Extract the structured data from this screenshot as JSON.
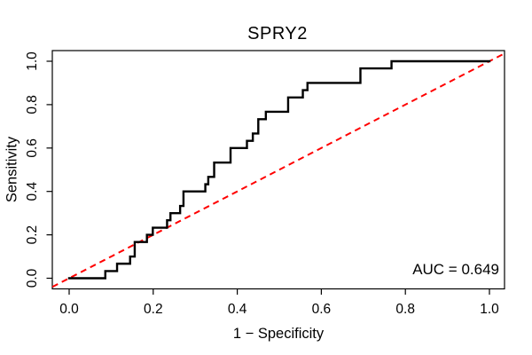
{
  "chart_data": {
    "type": "line",
    "subtype": "roc_step_curve",
    "title": "SPRY2",
    "xlabel": "1 − Specificity",
    "ylabel": "Sensitivity",
    "xlim": [
      0,
      1
    ],
    "ylim": [
      0,
      1
    ],
    "grid": false,
    "x_ticks": [
      0,
      0.2,
      0.4,
      0.6,
      0.8,
      1.0
    ],
    "x_tick_labels": [
      "0.0",
      "0.2",
      "0.4",
      "0.6",
      "0.8",
      "1.0"
    ],
    "y_ticks": [
      0,
      0.2,
      0.4,
      0.6,
      0.8,
      1.0
    ],
    "y_tick_labels": [
      "0.0",
      "0.2",
      "0.4",
      "0.6",
      "0.8",
      "1.0"
    ],
    "auc": 0.649,
    "annotation": "AUC = 0.649",
    "annotation_position": "bottom-right",
    "colors": {
      "curve": "#000000",
      "reference_line": "#FF0000",
      "axis": "#000000",
      "background": "#FFFFFF",
      "text": "#000000"
    },
    "series": [
      {
        "name": "ROC curve",
        "style": "solid-step",
        "color": "#000000",
        "points": [
          [
            0.0,
            0.0
          ],
          [
            0.086,
            0.033
          ],
          [
            0.114,
            0.067
          ],
          [
            0.145,
            0.1
          ],
          [
            0.156,
            0.167
          ],
          [
            0.185,
            0.2
          ],
          [
            0.199,
            0.233
          ],
          [
            0.233,
            0.267
          ],
          [
            0.241,
            0.3
          ],
          [
            0.264,
            0.333
          ],
          [
            0.272,
            0.4
          ],
          [
            0.324,
            0.433
          ],
          [
            0.331,
            0.467
          ],
          [
            0.345,
            0.533
          ],
          [
            0.384,
            0.6
          ],
          [
            0.423,
            0.633
          ],
          [
            0.437,
            0.667
          ],
          [
            0.45,
            0.733
          ],
          [
            0.468,
            0.767
          ],
          [
            0.521,
            0.833
          ],
          [
            0.556,
            0.867
          ],
          [
            0.567,
            0.9
          ],
          [
            0.693,
            0.967
          ],
          [
            0.767,
            1.0
          ],
          [
            1.0,
            1.0
          ]
        ]
      },
      {
        "name": "chance diagonal",
        "style": "dashed",
        "color": "#FF0000",
        "points": [
          [
            0,
            0
          ],
          [
            1,
            1
          ]
        ]
      }
    ]
  }
}
